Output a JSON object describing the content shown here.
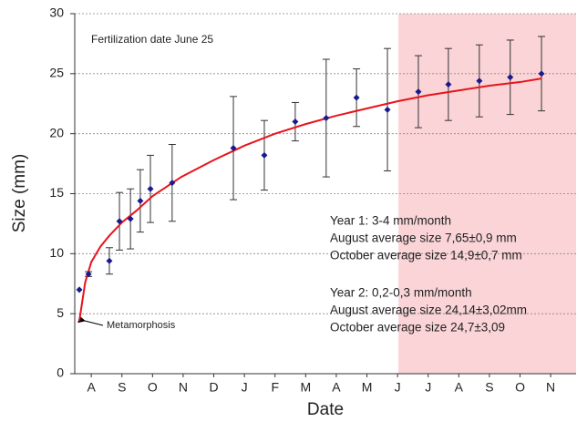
{
  "chart_data": {
    "type": "scatter",
    "x_label": "Date",
    "y_label": "Size (mm)",
    "xlim": [
      0.46,
      16.83
    ],
    "ylim": [
      0,
      30
    ],
    "xticks": [
      {
        "value": 1,
        "label": "A"
      },
      {
        "value": 2,
        "label": "S"
      },
      {
        "value": 3,
        "label": "O"
      },
      {
        "value": 4,
        "label": "N"
      },
      {
        "value": 5,
        "label": "D"
      },
      {
        "value": 6,
        "label": "J"
      },
      {
        "value": 7,
        "label": "F"
      },
      {
        "value": 8,
        "label": "M"
      },
      {
        "value": 9,
        "label": "A"
      },
      {
        "value": 10,
        "label": "M"
      },
      {
        "value": 11,
        "label": "J"
      },
      {
        "value": 12,
        "label": "J"
      },
      {
        "value": 13,
        "label": "A"
      },
      {
        "value": 14,
        "label": "S"
      },
      {
        "value": 15,
        "label": "O"
      },
      {
        "value": 16,
        "label": "N"
      }
    ],
    "yticks": [
      0,
      5,
      10,
      15,
      20,
      25,
      30
    ],
    "grid": true,
    "shaded_region": [
      11.03,
      16.83
    ],
    "shaded_color": "#fad4d6",
    "points": {
      "color": "#1a1a8c",
      "x": [
        0.61,
        0.91,
        1.59,
        1.92,
        2.28,
        2.6,
        2.93,
        3.64,
        5.64,
        6.65,
        7.66,
        8.67,
        9.66,
        10.67,
        11.68,
        12.66,
        13.67,
        14.68,
        15.7
      ],
      "values": [
        7.0,
        8.3,
        9.4,
        12.7,
        12.9,
        14.4,
        15.4,
        15.9,
        18.8,
        18.2,
        21.0,
        21.3,
        23.0,
        22.0,
        23.5,
        24.1,
        24.4,
        24.7,
        25.0
      ],
      "errors": [
        null,
        0.2,
        1.1,
        2.4,
        2.5,
        2.6,
        2.8,
        3.2,
        4.3,
        2.9,
        1.6,
        4.9,
        2.4,
        5.1,
        3.0,
        3.0,
        3.0,
        3.1,
        3.1
      ]
    },
    "fit": {
      "color": "#e8141c",
      "x": [
        0.61,
        0.8,
        1.0,
        1.3,
        1.59,
        2.0,
        2.48,
        3.0,
        3.94,
        5.0,
        6.0,
        7.0,
        8.0,
        9.0,
        10.0,
        11.0,
        12.0,
        13.0,
        14.0,
        15.0,
        15.7
      ],
      "values": [
        4.4,
        7.6,
        9.3,
        10.6,
        11.5,
        12.6,
        13.6,
        14.8,
        16.4,
        17.8,
        19.0,
        20.0,
        20.8,
        21.5,
        22.1,
        22.7,
        23.2,
        23.6,
        24.0,
        24.3,
        24.6
      ]
    },
    "annotations": {
      "fertilization": "Fertilization date June 25",
      "metamorphosis": "Metamorphosis",
      "notes": [
        "Year 1: 3-4 mm/month",
        "August average size 7,65±0,9 mm",
        "October average size  14,9±0,7 mm",
        "Year 2: 0,2-0,3 mm/month",
        "August average size 24,14±3,02mm",
        "October average size 24,7±3,09"
      ]
    }
  }
}
